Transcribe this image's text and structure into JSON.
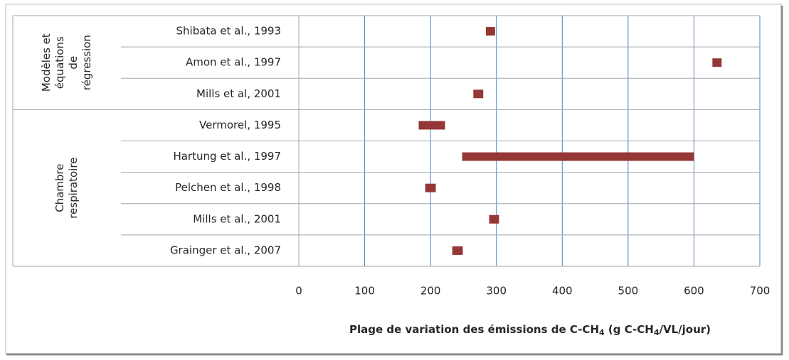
{
  "chart_data": {
    "type": "range",
    "groups": [
      {
        "label": [
          "Modèles et",
          "équations",
          "de",
          "régression"
        ],
        "categories": [
          "Shibata et al., 1993",
          "Amon et al., 1997",
          "Mills et al, 2001"
        ],
        "low": [
          284,
          628,
          265
        ],
        "high": [
          298,
          642,
          280
        ]
      },
      {
        "label": [
          "Chambre",
          "respiratoire"
        ],
        "categories": [
          "Vermorel, 1995",
          "Hartung et al., 1997",
          "Pelchen et al., 1998",
          "Mills et al., 2001",
          "Grainger et al., 2007"
        ],
        "low": [
          182,
          248,
          192,
          289,
          233
        ],
        "high": [
          222,
          600,
          208,
          304,
          249
        ]
      }
    ],
    "color": "#953735",
    "xlim": [
      0,
      700
    ],
    "xticks": [
      0,
      100,
      200,
      300,
      400,
      500,
      600,
      700
    ],
    "grid": true,
    "x_label": [
      "Plage de variation des émissions de C-CH",
      "4",
      " (g C-CH",
      "4",
      "/VL/jour)"
    ]
  }
}
